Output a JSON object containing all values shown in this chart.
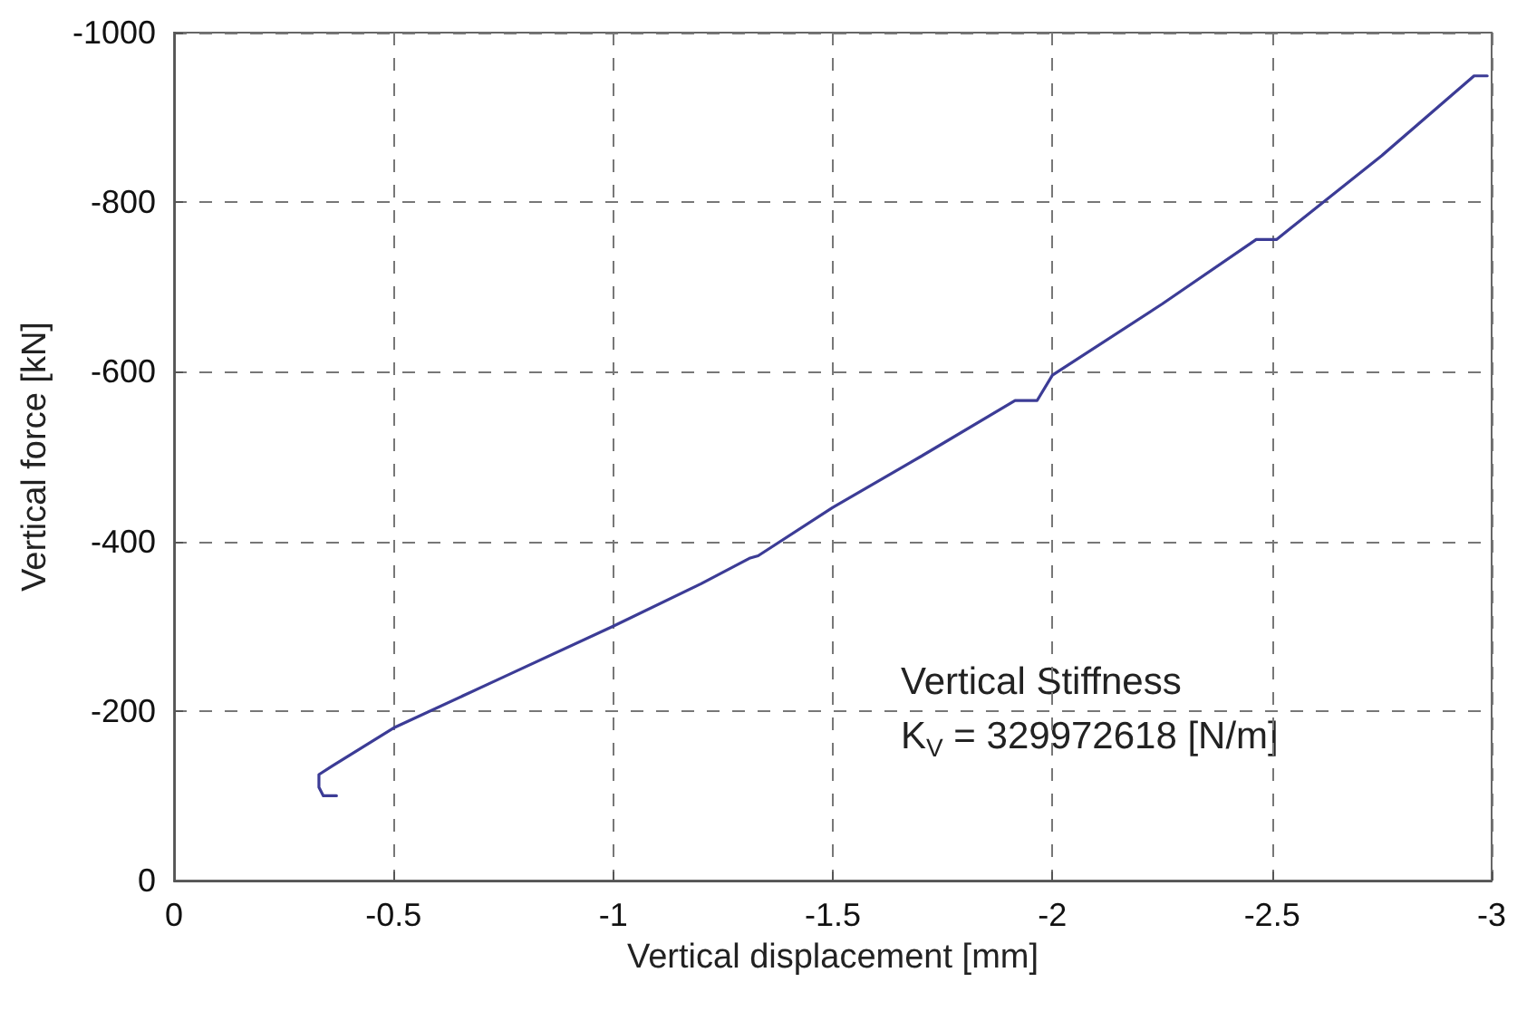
{
  "chart_data": {
    "type": "line",
    "xlabel": "Vertical displacement [mm]",
    "ylabel": "Vertical force [kN]",
    "annotations": [
      "Vertical Stiffness",
      "K$_{V}$ = 329972618 [N/m]"
    ],
    "x": [
      -0.37,
      -0.34,
      -0.33,
      -0.33,
      -0.36,
      -0.5,
      -0.75,
      -1,
      -1.2,
      -1.31,
      -1.33,
      -1.5,
      -1.7,
      -1.915,
      -1.965,
      -2,
      -2.25,
      -2.464,
      -2.51,
      -2.75,
      -2.96,
      -2.99
    ],
    "series": [
      {
        "color": "#3c3c96",
        "values": [
          -100,
          -100,
          -110,
          -125,
          -135,
          -180,
          -240,
          -300,
          -350,
          -380,
          -383,
          -440,
          -500,
          -566,
          -566,
          -596,
          -680,
          -756,
          -756,
          -855,
          -949,
          -949
        ]
      }
    ],
    "xlim": [
      0,
      -3
    ],
    "xticks": [
      0,
      -0.5,
      -1,
      -1.5,
      -2,
      -2.5,
      -3
    ],
    "ylim": [
      0,
      -1000
    ],
    "yticks": [
      0,
      -200,
      -400,
      -600,
      -800,
      -1000
    ],
    "grid": true,
    "line_style": "solid",
    "marker": "none"
  }
}
